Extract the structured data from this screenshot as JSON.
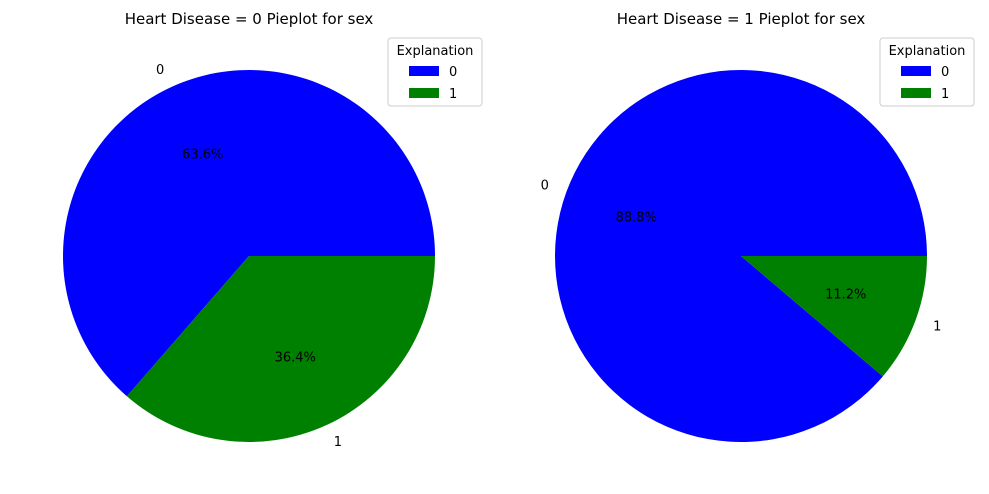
{
  "chart_data": [
    {
      "type": "pie",
      "title": "Heart Disease = 0 Pieplot for sex",
      "categories": [
        "0",
        "1"
      ],
      "values": [
        63.6,
        36.4
      ],
      "colors": [
        "#0000ff",
        "#008000"
      ],
      "autopct": [
        "63.6%",
        "36.4%"
      ],
      "legend": {
        "title": "Explanation",
        "entries": [
          "0",
          "1"
        ],
        "placement": "top-right"
      }
    },
    {
      "type": "pie",
      "title": "Heart Disease = 1 Pieplot for sex",
      "categories": [
        "0",
        "1"
      ],
      "values": [
        88.8,
        11.2
      ],
      "colors": [
        "#0000ff",
        "#008000"
      ],
      "autopct": [
        "88.8%",
        "11.2%"
      ],
      "legend": {
        "title": "Explanation",
        "entries": [
          "0",
          "1"
        ],
        "placement": "top-right"
      }
    }
  ]
}
